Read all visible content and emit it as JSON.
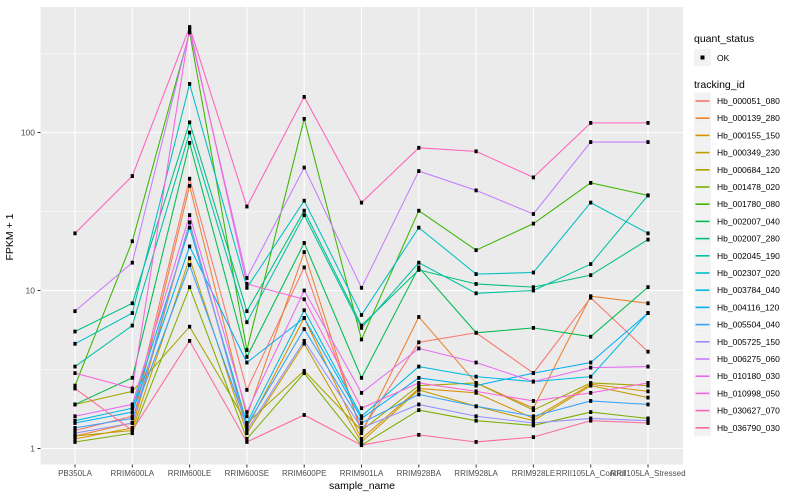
{
  "figure": {
    "background": "#FFFFFF",
    "panel_bg": "#EBEBEB",
    "grid_color": "#FFFFFF",
    "tick_color": "#333333",
    "tick_label_color": "#4D4D4D",
    "point_color": "#000000",
    "legend_key_bg": "#F2F2F2"
  },
  "chart_data": {
    "type": "line",
    "title": "",
    "xlabel": "sample_name",
    "ylabel": "FPKM + 1",
    "y_scale": "log10",
    "y_ticks": [
      1,
      10,
      100
    ],
    "y_tick_labels": [
      "1",
      "10",
      "100"
    ],
    "y_minor_ticks": [
      3.1623,
      31.623,
      316.23
    ],
    "ylim": [
      0.79,
      622
    ],
    "grid": "white major+minor horizontal, white vertical at categories, grey panel",
    "legend_position": "right",
    "point_shape": "small black square (quant_status OK)",
    "categories": [
      "PB350LA",
      "RRIM600LA",
      "RRIM600LE",
      "RRIM600SE",
      "RRIM600PE",
      "RRIM901LA",
      "RRIM928BA",
      "RRIM928LA",
      "RRIM928LE",
      "RRII105LA_Control",
      "RRII105LA_Stressed"
    ],
    "series": [
      {
        "name": "Hb_000051_080",
        "color": "#F8766D",
        "values": [
          1.3,
          1.6,
          51,
          2.35,
          14.0,
          1.3,
          4.7,
          5.4,
          3.0,
          9.0,
          4.1
        ]
      },
      {
        "name": "Hb_000139_280",
        "color": "#EA8331",
        "values": [
          1.2,
          1.45,
          46,
          1.6,
          17.5,
          1.25,
          6.8,
          2.6,
          1.8,
          9.2,
          8.3
        ]
      },
      {
        "name": "Hb_000155_150",
        "color": "#D89000",
        "values": [
          1.15,
          1.35,
          27,
          1.35,
          6.7,
          1.15,
          2.4,
          2.25,
          1.55,
          2.55,
          2.3
        ]
      },
      {
        "name": "Hb_000349_230",
        "color": "#C09B00",
        "values": [
          1.2,
          1.3,
          16,
          1.25,
          4.6,
          1.1,
          2.35,
          1.85,
          1.5,
          2.5,
          2.1
        ]
      },
      {
        "name": "Hb_000684_120",
        "color": "#A3A500",
        "values": [
          1.9,
          2.3,
          5.9,
          1.45,
          3.1,
          1.3,
          2.5,
          2.6,
          1.75,
          2.6,
          2.5
        ]
      },
      {
        "name": "Hb_001478_020",
        "color": "#7CAE00",
        "values": [
          1.1,
          1.25,
          10.5,
          1.15,
          3.0,
          1.05,
          1.75,
          1.5,
          1.4,
          1.7,
          1.55
        ]
      },
      {
        "name": "Hb_001780_080",
        "color": "#39B600",
        "values": [
          2.5,
          20.5,
          430,
          4.2,
          122,
          4.9,
          32,
          18,
          26.5,
          48,
          40
        ]
      },
      {
        "name": "Hb_002007_040",
        "color": "#00BB4E",
        "values": [
          1.9,
          2.8,
          86,
          3.8,
          20,
          2.8,
          14,
          5.4,
          5.8,
          5.1,
          10.5
        ]
      },
      {
        "name": "Hb_002007_280",
        "color": "#00BF7D",
        "values": [
          5.5,
          8.3,
          116,
          7.4,
          32,
          6.0,
          13.5,
          11,
          10.5,
          12.5,
          21
        ]
      },
      {
        "name": "Hb_002045_190",
        "color": "#00C1A3",
        "values": [
          3.3,
          6.0,
          100,
          6.3,
          30,
          5.8,
          15,
          9.6,
          10,
          14.7,
          40
        ]
      },
      {
        "name": "Hb_002307_020",
        "color": "#00BFC4",
        "values": [
          4.6,
          7.2,
          203,
          10.4,
          37,
          7.0,
          25,
          12.7,
          13,
          36,
          23
        ]
      },
      {
        "name": "Hb_003784_040",
        "color": "#00BAE0",
        "values": [
          1.5,
          1.8,
          25,
          1.45,
          7.5,
          1.6,
          3.3,
          2.85,
          2.65,
          2.85,
          7.2
        ]
      },
      {
        "name": "Hb_004116_120",
        "color": "#00B0F6",
        "values": [
          1.45,
          1.7,
          19,
          3.5,
          6.7,
          1.55,
          2.8,
          2.5,
          3.0,
          3.5,
          7.2
        ]
      },
      {
        "name": "Hb_005504_040",
        "color": "#35A2FF",
        "values": [
          1.35,
          1.55,
          14.5,
          1.4,
          5.7,
          1.45,
          2.2,
          1.85,
          1.6,
          2.0,
          1.9
        ]
      },
      {
        "name": "Hb_005725_150",
        "color": "#9590FF",
        "values": [
          1.25,
          1.45,
          27,
          1.3,
          4.8,
          1.35,
          1.9,
          1.6,
          1.45,
          1.55,
          1.5
        ]
      },
      {
        "name": "Hb_006275_060",
        "color": "#C77CFF",
        "values": [
          7.4,
          15,
          440,
          12,
          60,
          10.4,
          57,
          43,
          30.5,
          87,
          87
        ]
      },
      {
        "name": "Hb_010180_030",
        "color": "#E76BF3",
        "values": [
          1.6,
          1.9,
          30,
          1.7,
          10,
          2.25,
          4.3,
          3.5,
          2.65,
          3.25,
          3.3
        ]
      },
      {
        "name": "Hb_010998_050",
        "color": "#FA62DB",
        "values": [
          3.0,
          2.4,
          460,
          11,
          8.8,
          1.8,
          2.6,
          2.3,
          2.0,
          2.25,
          2.6
        ]
      },
      {
        "name": "Hb_030627_070",
        "color": "#FF62BC",
        "values": [
          23,
          53,
          465,
          34,
          168,
          36,
          80,
          76,
          52,
          115,
          115
        ]
      },
      {
        "name": "Hb_036790_030",
        "color": "#FF6A98",
        "values": [
          2.4,
          1.3,
          4.8,
          1.1,
          1.63,
          1.05,
          1.22,
          1.1,
          1.18,
          1.5,
          1.45
        ]
      }
    ]
  },
  "legend": {
    "quant_status_title": "quant_status",
    "quant_status_ok_label": "OK",
    "tracking_id_title": "tracking_id"
  },
  "axes": {
    "x_title": "sample_name",
    "y_title": "FPKM + 1"
  }
}
